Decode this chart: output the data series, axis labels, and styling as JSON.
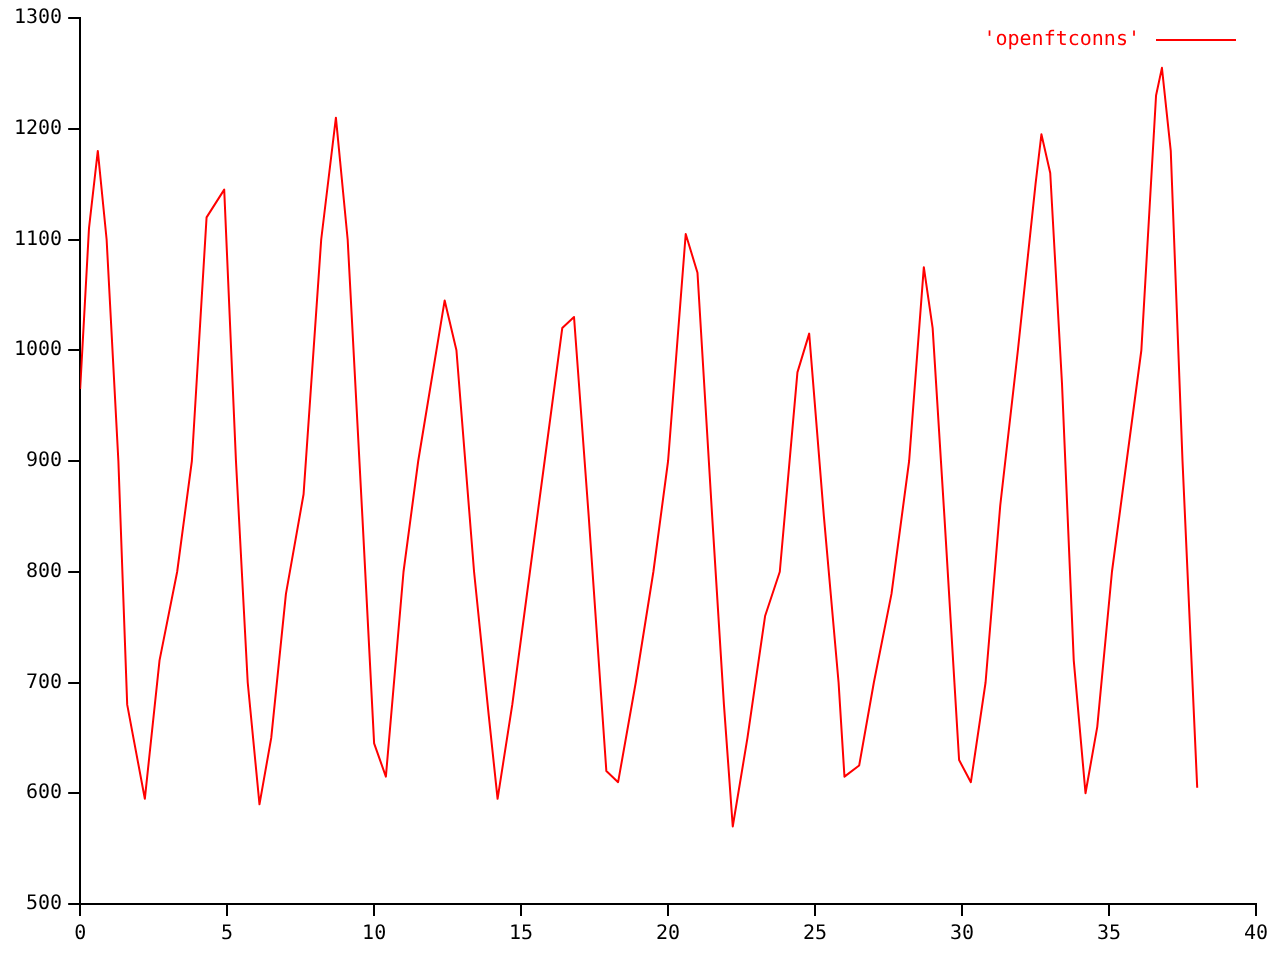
{
  "chart_data": {
    "type": "line",
    "x": [
      0,
      0.3,
      0.6,
      0.9,
      1.3,
      1.6,
      2.2,
      2.7,
      3.3,
      3.8,
      4.3,
      4.9,
      5.3,
      5.7,
      6.1,
      6.5,
      7.0,
      7.6,
      8.2,
      8.7,
      9.1,
      9.6,
      10.0,
      10.4,
      11.0,
      11.5,
      12.4,
      12.8,
      13.4,
      13.9,
      14.2,
      14.7,
      15.3,
      15.8,
      16.4,
      16.8,
      17.3,
      17.9,
      18.3,
      18.9,
      19.5,
      20.0,
      20.6,
      21.0,
      21.5,
      21.9,
      22.2,
      22.7,
      23.3,
      23.8,
      24.4,
      24.8,
      25.3,
      25.8,
      26.0,
      26.5,
      27.0,
      27.6,
      28.2,
      28.7,
      29.0,
      29.4,
      29.9,
      30.3,
      30.8,
      31.3,
      31.9,
      32.5,
      32.7,
      33.0,
      33.4,
      33.8,
      34.2,
      34.6,
      35.1,
      35.6,
      36.1,
      36.6,
      36.8,
      37.1,
      37.5,
      38.0
    ],
    "series": [
      {
        "name": "'openftconns'",
        "color": "#ff0000",
        "values": [
          965,
          1110,
          1180,
          1100,
          900,
          680,
          595,
          720,
          800,
          900,
          1120,
          1145,
          900,
          700,
          590,
          650,
          780,
          870,
          1100,
          1210,
          1100,
          850,
          645,
          615,
          800,
          900,
          1045,
          1000,
          800,
          670,
          595,
          680,
          800,
          900,
          1020,
          1030,
          850,
          620,
          610,
          700,
          800,
          900,
          1105,
          1070,
          850,
          680,
          570,
          650,
          760,
          800,
          980,
          1015,
          850,
          700,
          615,
          625,
          700,
          780,
          900,
          1075,
          1020,
          850,
          630,
          610,
          700,
          860,
          1000,
          1150,
          1195,
          1160,
          970,
          720,
          600,
          660,
          800,
          900,
          1000,
          1230,
          1255,
          1180,
          900,
          605
        ]
      }
    ],
    "xlim": [
      0,
      40
    ],
    "xticks": [
      0,
      5,
      10,
      15,
      20,
      25,
      30,
      35,
      40
    ],
    "ylim": [
      500,
      1300
    ],
    "yticks": [
      500,
      600,
      700,
      800,
      900,
      1000,
      1100,
      1200,
      1300
    ],
    "grid": false,
    "legend": "top right",
    "marker": "none",
    "line_style": "solid"
  }
}
